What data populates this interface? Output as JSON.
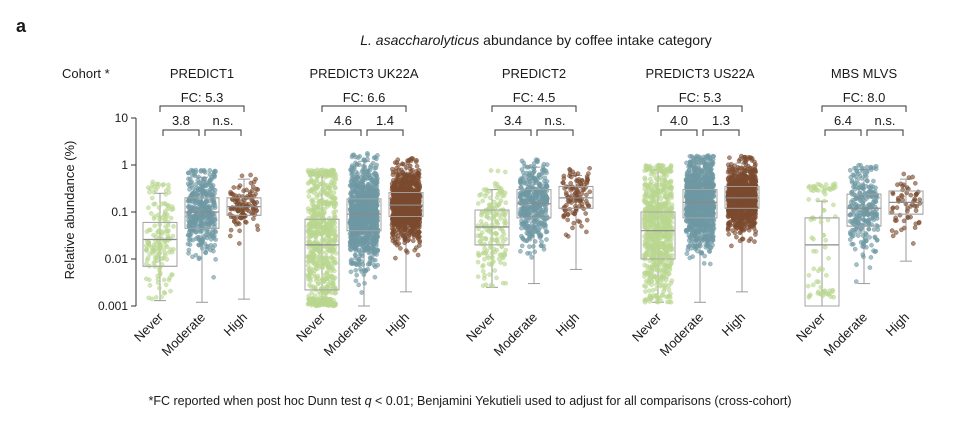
{
  "panel_label": "a",
  "title_italic": "L. asaccharolyticus",
  "title_rest": " abundance by coffee intake category",
  "cohort_label": "Cohort *",
  "footnote_pre": "*FC reported when post hoc Dunn test ",
  "footnote_q": "q",
  "footnote_post": " < 0.01; Benjamini Yekutieli used to adjust for all comparisons (cross-cohort)",
  "colors": {
    "Never": "#b9d68f",
    "Moderate": "#6e98a3",
    "High": "#7a4a2e"
  },
  "chart_data": {
    "type": "box",
    "title": "L. asaccharolyticus abundance by coffee intake category",
    "ylabel": "Relative abundance (%)",
    "yscale": "log",
    "ylim": [
      0.001,
      10
    ],
    "yticks": [
      {
        "value": 0.001,
        "label": "0.001"
      },
      {
        "value": 0.01,
        "label": "0.01"
      },
      {
        "value": 0.1,
        "label": "0.1"
      },
      {
        "value": 1,
        "label": "1"
      },
      {
        "value": 10,
        "label": "10"
      }
    ],
    "categories": [
      "Never",
      "Moderate",
      "High"
    ],
    "cohorts": [
      {
        "name": "PREDICT1",
        "fc_overall": "FC: 5.3",
        "fc_never_moderate": "3.8",
        "fc_moderate_high": "n.s.",
        "boxes": [
          {
            "category": "Never",
            "q1": 0.007,
            "median": 0.026,
            "q3": 0.06,
            "whisker_low": 0.0013,
            "whisker_high": 0.25,
            "n_points": 160,
            "pt_low": 0.0013,
            "pt_high": 0.45
          },
          {
            "category": "Moderate",
            "q1": 0.045,
            "median": 0.1,
            "q3": 0.2,
            "whisker_low": 0.0012,
            "whisker_high": 0.55,
            "n_points": 380,
            "pt_low": 0.0012,
            "pt_high": 0.8
          },
          {
            "category": "High",
            "q1": 0.085,
            "median": 0.13,
            "q3": 0.2,
            "whisker_low": 0.0014,
            "whisker_high": 0.5,
            "n_points": 110,
            "pt_low": 0.0014,
            "pt_high": 0.65
          }
        ]
      },
      {
        "name": "PREDICT3 UK22A",
        "fc_overall": "FC: 6.6",
        "fc_never_moderate": "4.6",
        "fc_moderate_high": "1.4",
        "boxes": [
          {
            "category": "Never",
            "q1": 0.0022,
            "median": 0.02,
            "q3": 0.07,
            "whisker_low": 0.001,
            "whisker_high": 0.6,
            "n_points": 700,
            "pt_low": 0.001,
            "pt_high": 0.8
          },
          {
            "category": "Moderate",
            "q1": 0.04,
            "median": 0.09,
            "q3": 0.19,
            "whisker_low": 0.001,
            "whisker_high": 1.2,
            "n_points": 1000,
            "pt_low": 0.001,
            "pt_high": 1.8
          },
          {
            "category": "High",
            "q1": 0.08,
            "median": 0.14,
            "q3": 0.26,
            "whisker_low": 0.002,
            "whisker_high": 1.0,
            "n_points": 900,
            "pt_low": 0.002,
            "pt_high": 1.5
          }
        ]
      },
      {
        "name": "PREDICT2",
        "fc_overall": "FC: 4.5",
        "fc_never_moderate": "3.4",
        "fc_moderate_high": "n.s.",
        "boxes": [
          {
            "category": "Never",
            "q1": 0.02,
            "median": 0.048,
            "q3": 0.11,
            "whisker_low": 0.0025,
            "whisker_high": 0.3,
            "n_points": 170,
            "pt_low": 0.0025,
            "pt_high": 0.9
          },
          {
            "category": "Moderate",
            "q1": 0.075,
            "median": 0.15,
            "q3": 0.3,
            "whisker_low": 0.003,
            "whisker_high": 0.9,
            "n_points": 380,
            "pt_low": 0.003,
            "pt_high": 1.3
          },
          {
            "category": "High",
            "q1": 0.12,
            "median": 0.2,
            "q3": 0.35,
            "whisker_low": 0.006,
            "whisker_high": 0.6,
            "n_points": 110,
            "pt_low": 0.006,
            "pt_high": 0.9
          }
        ]
      },
      {
        "name": "PREDICT3 US22A",
        "fc_overall": "FC: 5.3",
        "fc_never_moderate": "4.0",
        "fc_moderate_high": "1.3",
        "boxes": [
          {
            "category": "Never",
            "q1": 0.01,
            "median": 0.04,
            "q3": 0.1,
            "whisker_low": 0.0012,
            "whisker_high": 0.8,
            "n_points": 700,
            "pt_low": 0.0012,
            "pt_high": 1.0
          },
          {
            "category": "Moderate",
            "q1": 0.075,
            "median": 0.16,
            "q3": 0.3,
            "whisker_low": 0.0012,
            "whisker_high": 1.1,
            "n_points": 1000,
            "pt_low": 0.0012,
            "pt_high": 1.6
          },
          {
            "category": "High",
            "q1": 0.12,
            "median": 0.2,
            "q3": 0.35,
            "whisker_low": 0.002,
            "whisker_high": 1.1,
            "n_points": 900,
            "pt_low": 0.002,
            "pt_high": 1.6
          }
        ]
      },
      {
        "name": "MBS MLVS",
        "fc_overall": "FC: 8.0",
        "fc_never_moderate": "6.4",
        "fc_moderate_high": "n.s.",
        "boxes": [
          {
            "category": "Never",
            "q1": 0.001,
            "median": 0.02,
            "q3": 0.075,
            "whisker_low": 0.001,
            "whisker_high": 0.17,
            "n_points": 80,
            "pt_low": 0.0015,
            "pt_high": 0.4
          },
          {
            "category": "Moderate",
            "q1": 0.05,
            "median": 0.12,
            "q3": 0.24,
            "whisker_low": 0.003,
            "whisker_high": 0.8,
            "n_points": 250,
            "pt_low": 0.003,
            "pt_high": 1.0
          },
          {
            "category": "High",
            "q1": 0.09,
            "median": 0.16,
            "q3": 0.28,
            "whisker_low": 0.009,
            "whisker_high": 0.5,
            "n_points": 60,
            "pt_low": 0.009,
            "pt_high": 0.9
          }
        ]
      }
    ]
  }
}
